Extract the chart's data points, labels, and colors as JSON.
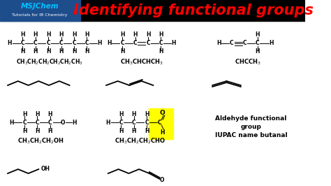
{
  "title": "Identifying functional groups",
  "title_color": "#FF0000",
  "title_fontsize": 15,
  "bg_color": "#FFFFFF",
  "header_bg": "#000000",
  "logo_text1": "MSJChem",
  "logo_text2": "Tutorials for IB Chemistry",
  "logo_color1": "#00BFFF",
  "logo_color2": "#FFFFFF",
  "logo_bg": "#1E4D8C",
  "border_color": "#AAAAAA",
  "highlight_yellow": "#FFFF00",
  "aldehyde_text1": "Aldehyde functional",
  "aldehyde_text2": "group",
  "aldehyde_text3": "IUPAC name butanal",
  "content_bg": "#F5F5F5"
}
